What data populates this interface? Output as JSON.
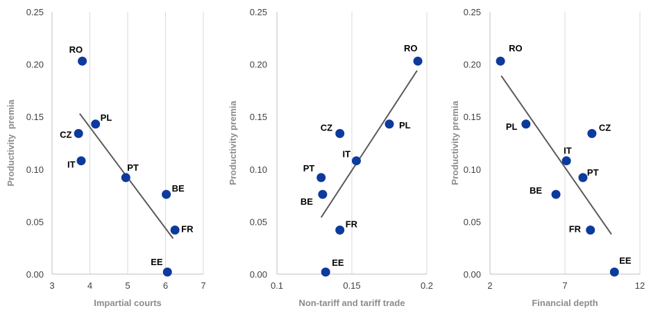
{
  "colors": {
    "point": "#0d3a9e",
    "trend": "#595959",
    "grid": "#d9d9d9",
    "axis": "#bfbfbf",
    "axis_title": "#8c8c8c"
  },
  "chart_data": [
    {
      "type": "scatter",
      "xlabel": "Impartial courts",
      "ylabel": "Productivity  premia",
      "xlim": [
        3,
        7
      ],
      "ylim": [
        0,
        0.25
      ],
      "xticks": [
        3,
        4,
        5,
        6,
        7
      ],
      "xtick_labels": [
        "3",
        "4",
        "5",
        "6",
        "7"
      ],
      "yticks": [
        0,
        0.05,
        0.1,
        0.15,
        0.2,
        0.25
      ],
      "ytick_labels": [
        "0.00",
        "0.05",
        "0.10",
        "0.15",
        "0.20",
        "0.25"
      ],
      "grid": "vertical",
      "points": [
        {
          "label": "RO",
          "x": 3.8,
          "y": 0.203
        },
        {
          "label": "PL",
          "x": 4.15,
          "y": 0.143
        },
        {
          "label": "CZ",
          "x": 3.7,
          "y": 0.134
        },
        {
          "label": "IT",
          "x": 3.77,
          "y": 0.108
        },
        {
          "label": "PT",
          "x": 4.95,
          "y": 0.092
        },
        {
          "label": "BE",
          "x": 6.02,
          "y": 0.076
        },
        {
          "label": "FR",
          "x": 6.25,
          "y": 0.042
        },
        {
          "label": "EE",
          "x": 6.05,
          "y": 0.002
        }
      ],
      "trendline": {
        "x": [
          3.73,
          6.2
        ],
        "y": [
          0.153,
          0.034
        ]
      }
    },
    {
      "type": "scatter",
      "xlabel": "Non-tariff and tariff trade",
      "ylabel": "Productivity premia",
      "xlim": [
        0.1,
        0.2
      ],
      "ylim": [
        0,
        0.25
      ],
      "xticks": [
        0.1,
        0.15,
        0.2
      ],
      "xtick_labels": [
        "0.1",
        "0.15",
        "0.2"
      ],
      "yticks": [
        0,
        0.05,
        0.1,
        0.15,
        0.2,
        0.25
      ],
      "ytick_labels": [
        "0.00",
        "0.05",
        "0.10",
        "0.15",
        "0.20",
        "0.25"
      ],
      "grid": "vertical",
      "points": [
        {
          "label": "RO",
          "x": 0.194,
          "y": 0.203
        },
        {
          "label": "PL",
          "x": 0.175,
          "y": 0.143
        },
        {
          "label": "CZ",
          "x": 0.142,
          "y": 0.134
        },
        {
          "label": "IT",
          "x": 0.153,
          "y": 0.108
        },
        {
          "label": "PT",
          "x": 0.1295,
          "y": 0.092
        },
        {
          "label": "BE",
          "x": 0.1305,
          "y": 0.076
        },
        {
          "label": "FR",
          "x": 0.142,
          "y": 0.042
        },
        {
          "label": "EE",
          "x": 0.1325,
          "y": 0.002
        }
      ],
      "trendline": {
        "x": [
          0.1295,
          0.1935
        ],
        "y": [
          0.054,
          0.194
        ]
      }
    },
    {
      "type": "scatter",
      "xlabel": "Financial depth",
      "ylabel": "Productivity premia",
      "xlim": [
        2,
        12
      ],
      "ylim": [
        0,
        0.25
      ],
      "xticks": [
        2,
        7,
        12
      ],
      "xtick_labels": [
        "2",
        "7",
        "12"
      ],
      "yticks": [
        0,
        0.05,
        0.1,
        0.15,
        0.2,
        0.25
      ],
      "ytick_labels": [
        "0.00",
        "0.05",
        "0.10",
        "0.15",
        "0.20",
        "0.25"
      ],
      "grid": "vertical",
      "points": [
        {
          "label": "RO",
          "x": 2.7,
          "y": 0.203
        },
        {
          "label": "PL",
          "x": 4.4,
          "y": 0.143
        },
        {
          "label": "CZ",
          "x": 8.8,
          "y": 0.134
        },
        {
          "label": "IT",
          "x": 7.1,
          "y": 0.108
        },
        {
          "label": "PT",
          "x": 8.2,
          "y": 0.092
        },
        {
          "label": "BE",
          "x": 6.4,
          "y": 0.076
        },
        {
          "label": "FR",
          "x": 8.7,
          "y": 0.042
        },
        {
          "label": "EE",
          "x": 10.3,
          "y": 0.002
        }
      ],
      "trendline": {
        "x": [
          2.75,
          10.1
        ],
        "y": [
          0.189,
          0.038
        ]
      }
    }
  ]
}
